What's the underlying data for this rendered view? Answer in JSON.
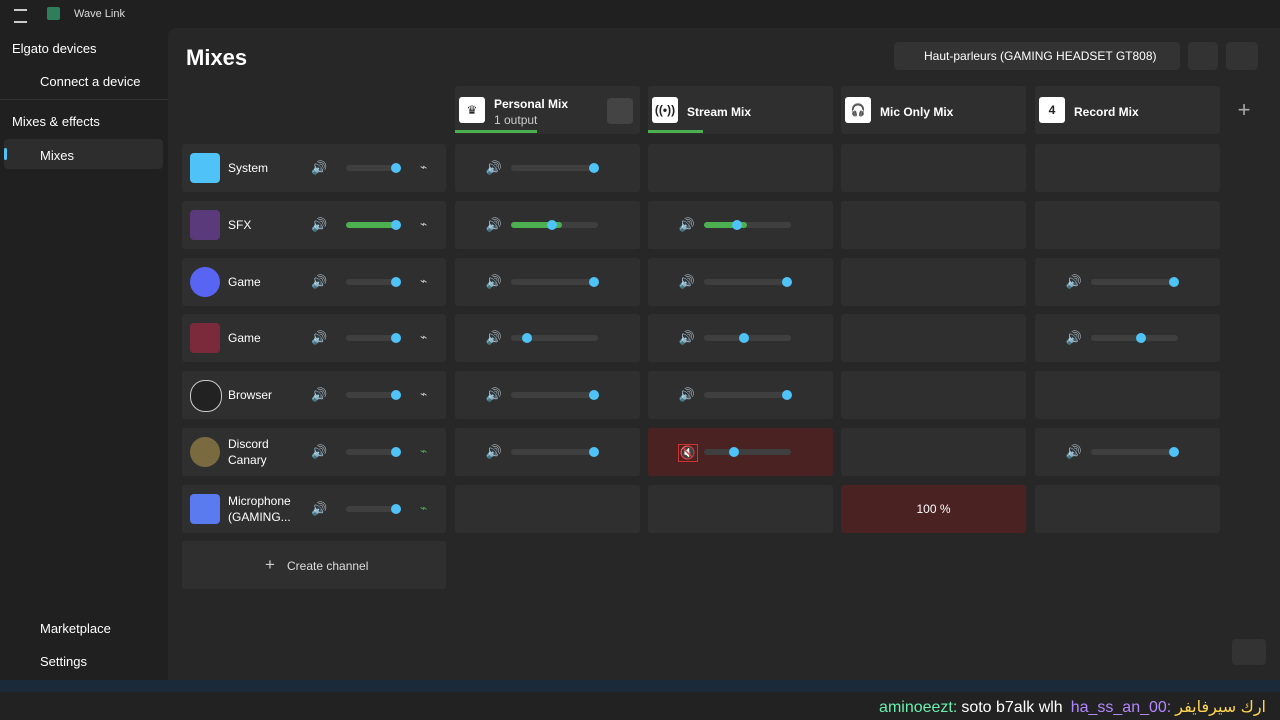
{
  "app": {
    "title": "Wave Link"
  },
  "sidebar": {
    "devices_heading": "Elgato devices",
    "connect": "Connect a device",
    "mixes_heading": "Mixes & effects",
    "mixes": "Mixes",
    "marketplace": "Marketplace",
    "settings": "Settings"
  },
  "main": {
    "title": "Mixes",
    "output_device": "Haut-parleurs (GAMING HEADSET GT808)",
    "mixes": [
      {
        "name": "Personal Mix",
        "subtitle": "1 output"
      },
      {
        "name": "Stream Mix"
      },
      {
        "name": "Mic Only Mix"
      },
      {
        "name": "Record Mix",
        "badge": "4"
      }
    ],
    "channels": [
      "System",
      "SFX",
      "Game",
      "Game",
      "Browser",
      "Discord Canary",
      "Microphone (GAMING..."
    ],
    "mic_only_level": "100 %",
    "create_channel": "Create channel"
  },
  "chat": [
    {
      "user": "aminoeezt:",
      "message": "soto b7alk wlh"
    },
    {
      "user": "ha_ss_an_00:",
      "message": "ارك سيرفايفر"
    }
  ]
}
